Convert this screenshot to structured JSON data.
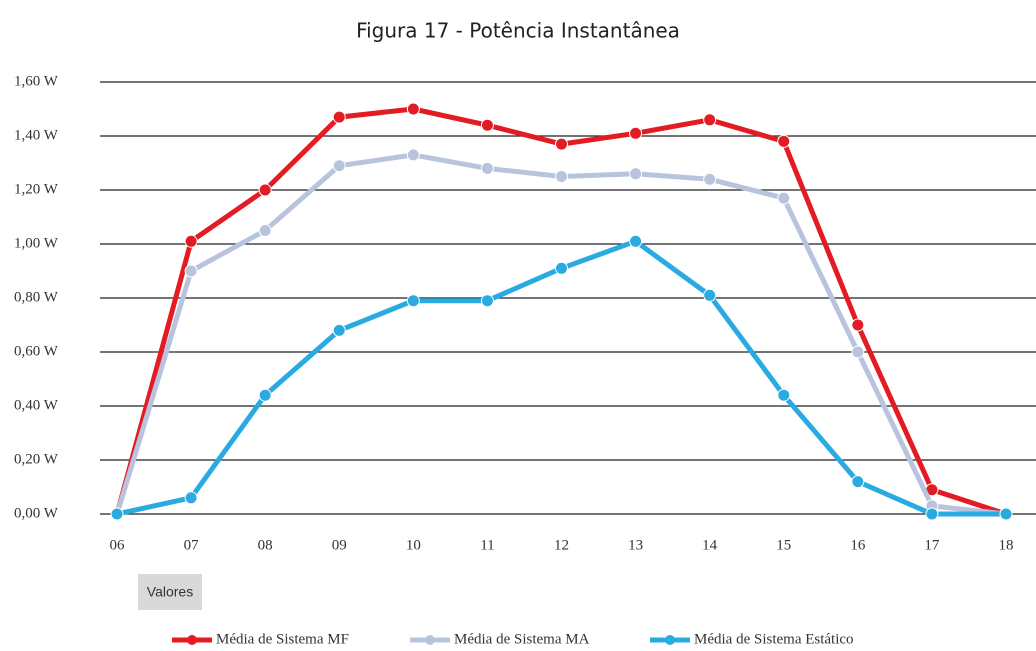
{
  "chart_data": {
    "type": "line",
    "title": "Figura 17 - Potência Instantânea",
    "categories": [
      "06",
      "07",
      "08",
      "09",
      "10",
      "11",
      "12",
      "13",
      "14",
      "15",
      "16",
      "17",
      "18"
    ],
    "ylim": [
      0,
      1.6
    ],
    "yticks": [
      {
        "value": 0,
        "label": "0,00 W"
      },
      {
        "value": 0.2,
        "label": "0,20 W"
      },
      {
        "value": 0.4,
        "label": "0,40 W"
      },
      {
        "value": 0.6,
        "label": "0,60 W"
      },
      {
        "value": 0.8,
        "label": "0,80 W"
      },
      {
        "value": 1.0,
        "label": "1,00 W"
      },
      {
        "value": 1.2,
        "label": "1,20 W"
      },
      {
        "value": 1.4,
        "label": "1,40 W"
      },
      {
        "value": 1.6,
        "label": "1,60 W"
      }
    ],
    "grid": true,
    "field_label": "Valores",
    "series": [
      {
        "name": "Média de Sistema MF",
        "color": "#e31b23",
        "values": [
          0,
          1.01,
          1.2,
          1.47,
          1.5,
          1.44,
          1.37,
          1.41,
          1.46,
          1.38,
          0.7,
          0.09,
          0.0
        ]
      },
      {
        "name": "Média de Sistema MA",
        "color": "#b8c4de",
        "values": [
          0,
          0.9,
          1.05,
          1.29,
          1.33,
          1.28,
          1.25,
          1.26,
          1.24,
          1.17,
          0.6,
          0.03,
          0.0
        ]
      },
      {
        "name": "Média de Sistema Estático",
        "color": "#29abe2",
        "values": [
          0,
          0.06,
          0.44,
          0.68,
          0.79,
          0.79,
          0.91,
          1.01,
          0.81,
          0.44,
          0.12,
          0.0,
          0.0
        ]
      }
    ]
  }
}
